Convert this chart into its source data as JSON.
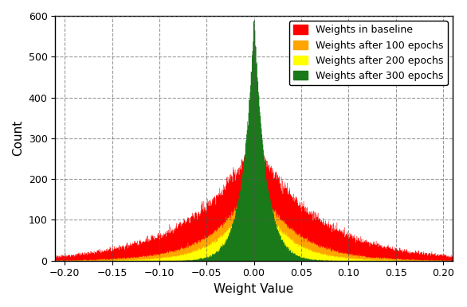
{
  "title": "",
  "xlabel": "Weight Value",
  "ylabel": "Count",
  "xlim": [
    -0.21,
    0.21
  ],
  "ylim": [
    0,
    600
  ],
  "yticks": [
    0,
    100,
    200,
    300,
    400,
    500,
    600
  ],
  "xticks": [
    -0.2,
    -0.15,
    -0.1,
    -0.05,
    0.0,
    0.05,
    0.1,
    0.15,
    0.2
  ],
  "xtick_labels": [
    "−0.20",
    "−0.15",
    "−0.10",
    "−0.05",
    "0.00",
    "0.05",
    "0.10",
    "0.15",
    "0.20"
  ],
  "num_bins": 800,
  "series": [
    {
      "label": "Weights in baseline",
      "color": "#FF0000",
      "scale": 0.065,
      "peak": 305,
      "seed": 42
    },
    {
      "label": "Weights after 100 epochs",
      "color": "#FFA500",
      "scale": 0.04,
      "peak": 210,
      "seed": 43
    },
    {
      "label": "Weights after 200 epochs",
      "color": "#FFFF00",
      "scale": 0.03,
      "peak": 200,
      "seed": 44
    },
    {
      "label": "Weights after 300 epochs",
      "color": "#1A7A1A",
      "scale": 0.012,
      "peak": 590,
      "seed": 45
    }
  ],
  "background_color": "#FFFFFF",
  "grid_color": "#555555",
  "grid_linestyle": "--",
  "grid_alpha": 0.6,
  "legend_fontsize": 9,
  "axis_fontsize": 11,
  "tick_fontsize": 9
}
